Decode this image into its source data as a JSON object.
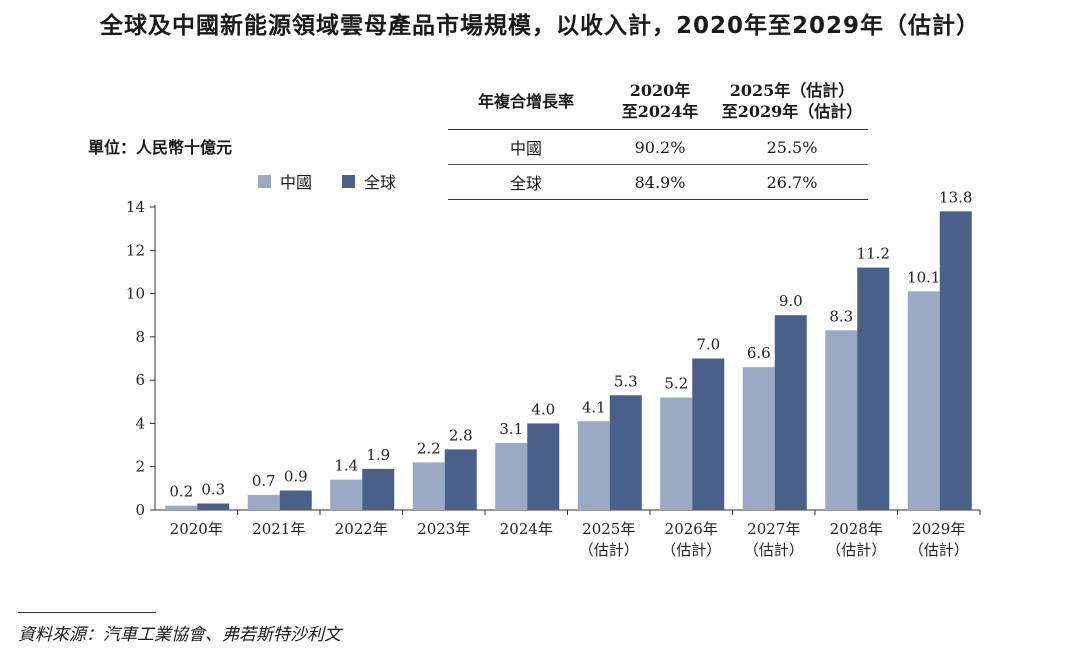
{
  "chart_data": {
    "type": "bar",
    "title": "全球及中國新能源領域雲母產品市場規模，以收入計，2020年至2029年（估計）",
    "ylabel": "單位：人民幣十億元",
    "ylim": [
      0,
      14
    ],
    "yticks": [
      "0",
      "2",
      "4",
      "6",
      "8",
      "10",
      "12",
      "14"
    ],
    "categories": [
      [
        "2020年"
      ],
      [
        "2021年"
      ],
      [
        "2022年"
      ],
      [
        "2023年"
      ],
      [
        "2024年"
      ],
      [
        "2025年",
        "（估計）"
      ],
      [
        "2026年",
        "（估計）"
      ],
      [
        "2027年",
        "（估計）"
      ],
      [
        "2028年",
        "（估計）"
      ],
      [
        "2029年",
        "（估計）"
      ]
    ],
    "series": [
      {
        "name": "中國",
        "color": "#9aa9c4",
        "values": [
          0.2,
          0.7,
          1.4,
          2.2,
          3.1,
          4.1,
          5.2,
          6.6,
          8.3,
          10.1
        ]
      },
      {
        "name": "全球",
        "color": "#4a6088",
        "values": [
          0.3,
          0.9,
          1.9,
          2.8,
          4.0,
          5.3,
          7.0,
          9.0,
          11.2,
          13.8
        ]
      }
    ],
    "legend": "top-left"
  },
  "cagr_table": {
    "header": "年複合增長率",
    "col1": [
      "2020年",
      "至2024年"
    ],
    "col2": [
      "2025年（估計）",
      "至2029年（估計）"
    ],
    "rows": [
      {
        "label": "中國",
        "v1": "90.2%",
        "v2": "25.5%"
      },
      {
        "label": "全球",
        "v1": "84.9%",
        "v2": "26.7%"
      }
    ]
  },
  "source": "資料來源：汽車工業協會、弗若斯特沙利文"
}
